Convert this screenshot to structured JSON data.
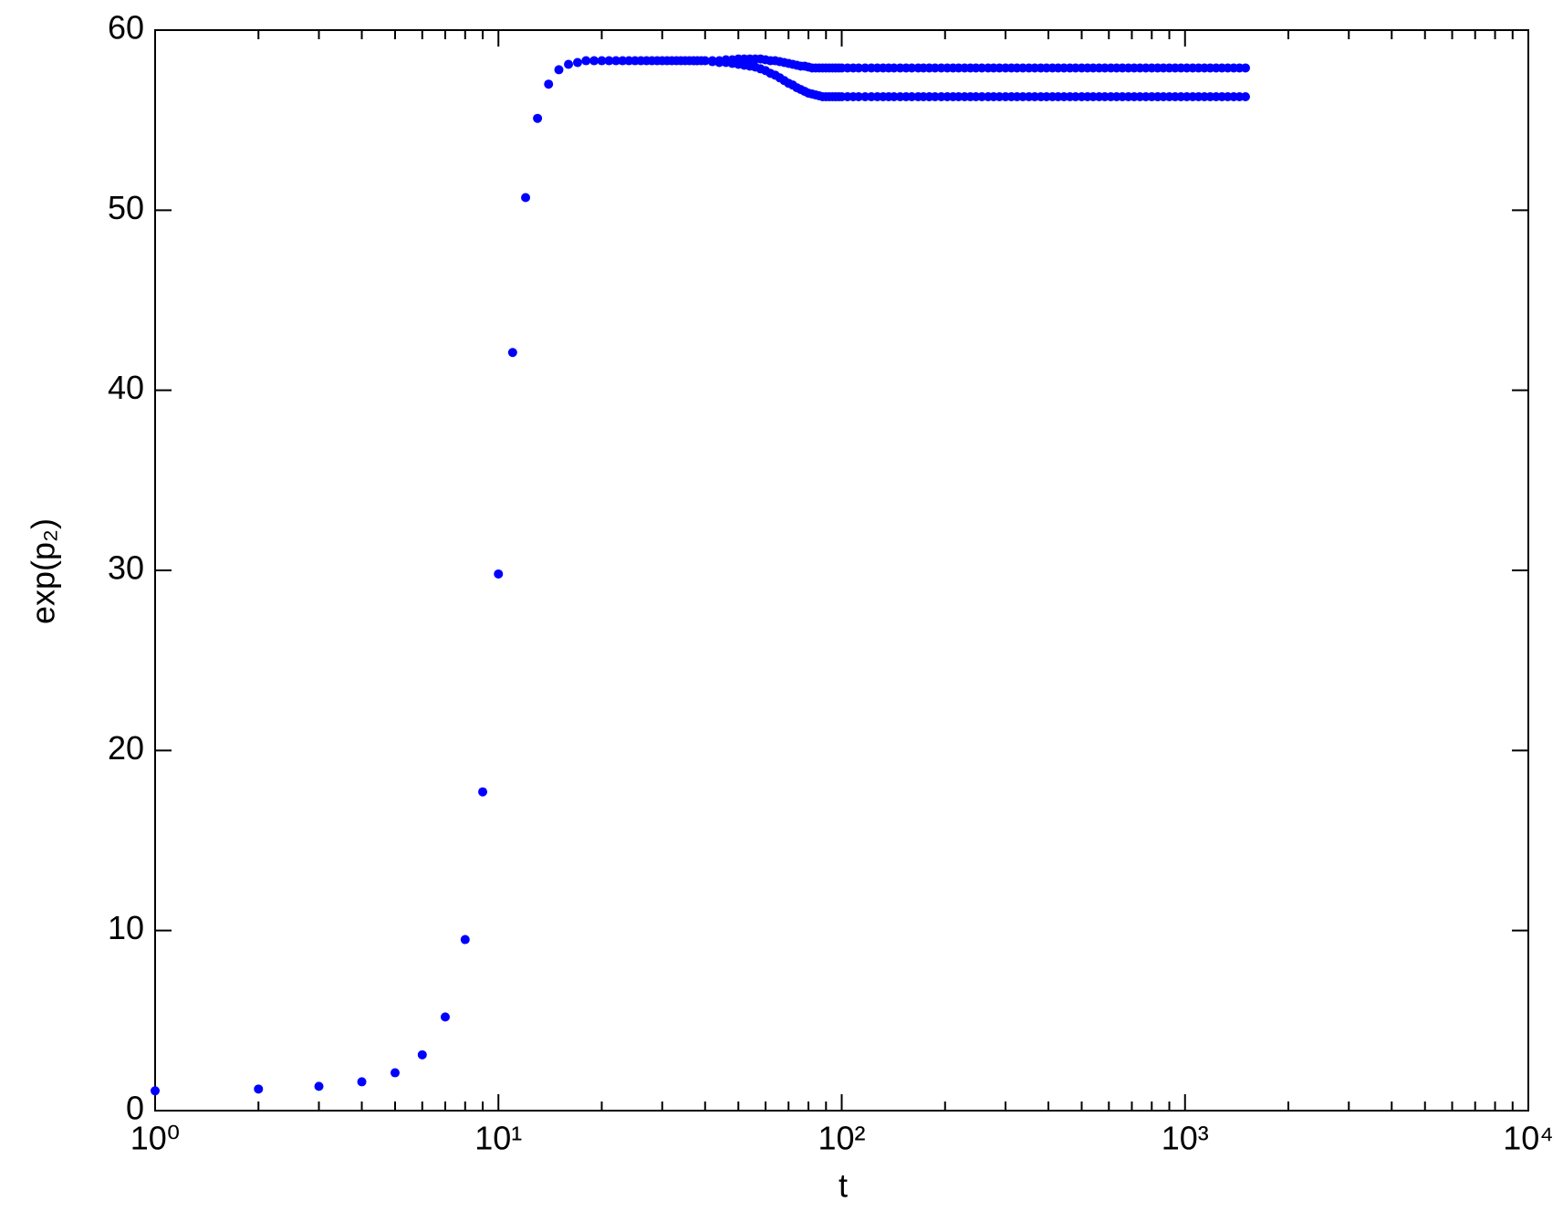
{
  "chart_data": {
    "type": "scatter",
    "xlabel": "t",
    "ylabel": "exp(p₂)",
    "xscale": "log",
    "xlim": [
      1,
      10000
    ],
    "ylim": [
      0,
      60
    ],
    "xticks": [
      {
        "value": 1,
        "label": "10⁰"
      },
      {
        "value": 10,
        "label": "10¹"
      },
      {
        "value": 100,
        "label": "10²"
      },
      {
        "value": 1000,
        "label": "10³"
      },
      {
        "value": 10000,
        "label": "10⁴"
      }
    ],
    "xminorticks": [
      2,
      3,
      4,
      5,
      6,
      7,
      8,
      9,
      20,
      30,
      40,
      50,
      60,
      70,
      80,
      90,
      200,
      300,
      400,
      500,
      600,
      700,
      800,
      900,
      2000,
      3000,
      4000,
      5000,
      6000,
      7000,
      8000,
      9000
    ],
    "yticks": [
      0,
      10,
      20,
      30,
      40,
      50,
      60
    ],
    "series": [
      {
        "color": "#0000ff",
        "x": [
          1,
          2,
          3,
          4,
          5,
          6,
          7,
          8,
          9,
          10,
          11,
          12,
          13,
          14,
          15,
          16,
          17,
          18,
          19,
          20,
          21,
          22,
          23,
          24,
          25,
          26,
          27,
          28,
          29,
          30,
          31,
          32,
          33,
          34,
          35,
          36,
          37,
          38,
          39,
          40
        ],
        "values": [
          1.1,
          1.2,
          1.35,
          1.6,
          2.1,
          3.1,
          5.2,
          9.5,
          17.7,
          29.8,
          42.1,
          50.7,
          55.1,
          57.0,
          57.8,
          58.1,
          58.2,
          58.3,
          58.3,
          58.3,
          58.3,
          58.3,
          58.3,
          58.3,
          58.3,
          58.3,
          58.3,
          58.3,
          58.3,
          58.3,
          58.3,
          58.3,
          58.3,
          58.3,
          58.3,
          58.3,
          58.3,
          58.3,
          58.3,
          58.3
        ]
      },
      {
        "color": "#0000ff",
        "x": [
          42,
          44,
          46,
          48,
          50,
          52,
          54,
          56,
          58,
          60,
          62,
          64,
          66,
          68,
          70,
          72,
          74,
          76,
          78,
          80,
          82,
          84,
          86,
          88,
          90,
          92,
          94,
          96,
          98,
          100,
          104,
          108,
          112,
          117,
          122,
          127,
          132,
          137,
          142,
          148,
          154,
          160,
          167,
          173,
          180,
          187,
          195,
          203,
          211,
          219,
          228,
          237,
          246,
          256,
          267,
          277,
          288,
          300,
          312,
          324,
          337,
          351,
          365,
          380,
          395,
          411,
          427,
          444,
          462,
          480,
          500,
          520,
          540,
          562,
          584,
          608,
          632,
          657,
          684,
          711,
          739,
          769,
          800,
          832,
          865,
          900,
          936,
          973,
          1012,
          1053,
          1095,
          1139,
          1184,
          1232,
          1281,
          1332,
          1386,
          1441,
          1500
        ],
        "values": [
          58.3,
          58.3,
          58.35,
          58.35,
          58.4,
          58.4,
          58.4,
          58.4,
          58.4,
          58.35,
          58.3,
          58.3,
          58.25,
          58.2,
          58.15,
          58.1,
          58.05,
          58.0,
          58.0,
          57.95,
          57.9,
          57.9,
          57.9,
          57.9,
          57.9,
          57.9,
          57.9,
          57.9,
          57.9,
          57.9,
          57.9,
          57.9,
          57.9,
          57.9,
          57.9,
          57.9,
          57.9,
          57.9,
          57.9,
          57.9,
          57.9,
          57.9,
          57.9,
          57.9,
          57.9,
          57.9,
          57.9,
          57.9,
          57.9,
          57.9,
          57.9,
          57.9,
          57.9,
          57.9,
          57.9,
          57.9,
          57.9,
          57.9,
          57.9,
          57.9,
          57.9,
          57.9,
          57.9,
          57.9,
          57.9,
          57.9,
          57.9,
          57.9,
          57.9,
          57.9,
          57.9,
          57.9,
          57.9,
          57.9,
          57.9,
          57.9,
          57.9,
          57.9,
          57.9,
          57.9,
          57.9,
          57.9,
          57.9,
          57.9,
          57.9,
          57.9,
          57.9,
          57.9,
          57.9,
          57.9,
          57.9,
          57.9,
          57.9,
          57.9,
          57.9,
          57.9,
          57.9,
          57.9,
          57.9
        ]
      },
      {
        "color": "#0000ff",
        "x": [
          42,
          44,
          46,
          48,
          50,
          52,
          54,
          56,
          58,
          60,
          62,
          64,
          66,
          68,
          70,
          72,
          74,
          76,
          78,
          80,
          82,
          84,
          86,
          88,
          90,
          92,
          94,
          96,
          98,
          100,
          104,
          108,
          112,
          117,
          122,
          127,
          132,
          137,
          142,
          148,
          154,
          160,
          167,
          173,
          180,
          187,
          195,
          203,
          211,
          219,
          228,
          237,
          246,
          256,
          267,
          277,
          288,
          300,
          312,
          324,
          337,
          351,
          365,
          380,
          395,
          411,
          427,
          444,
          462,
          480,
          500,
          520,
          540,
          562,
          584,
          608,
          632,
          657,
          684,
          711,
          739,
          769,
          800,
          832,
          865,
          900,
          936,
          973,
          1012,
          1053,
          1095,
          1139,
          1184,
          1232,
          1281,
          1332,
          1386,
          1441,
          1500
        ],
        "values": [
          58.25,
          58.2,
          58.2,
          58.15,
          58.1,
          58.05,
          58.0,
          57.95,
          57.85,
          57.75,
          57.6,
          57.5,
          57.35,
          57.2,
          57.05,
          56.95,
          56.8,
          56.7,
          56.6,
          56.5,
          56.45,
          56.4,
          56.35,
          56.3,
          56.3,
          56.3,
          56.3,
          56.3,
          56.3,
          56.3,
          56.3,
          56.3,
          56.3,
          56.3,
          56.3,
          56.3,
          56.3,
          56.3,
          56.3,
          56.3,
          56.3,
          56.3,
          56.3,
          56.3,
          56.3,
          56.3,
          56.3,
          56.3,
          56.3,
          56.3,
          56.3,
          56.3,
          56.3,
          56.3,
          56.3,
          56.3,
          56.3,
          56.3,
          56.3,
          56.3,
          56.3,
          56.3,
          56.3,
          56.3,
          56.3,
          56.3,
          56.3,
          56.3,
          56.3,
          56.3,
          56.3,
          56.3,
          56.3,
          56.3,
          56.3,
          56.3,
          56.3,
          56.3,
          56.3,
          56.3,
          56.3,
          56.3,
          56.3,
          56.3,
          56.3,
          56.3,
          56.3,
          56.3,
          56.3,
          56.3,
          56.3,
          56.3,
          56.3,
          56.3,
          56.3,
          56.3,
          56.3,
          56.3,
          56.3
        ]
      }
    ]
  }
}
